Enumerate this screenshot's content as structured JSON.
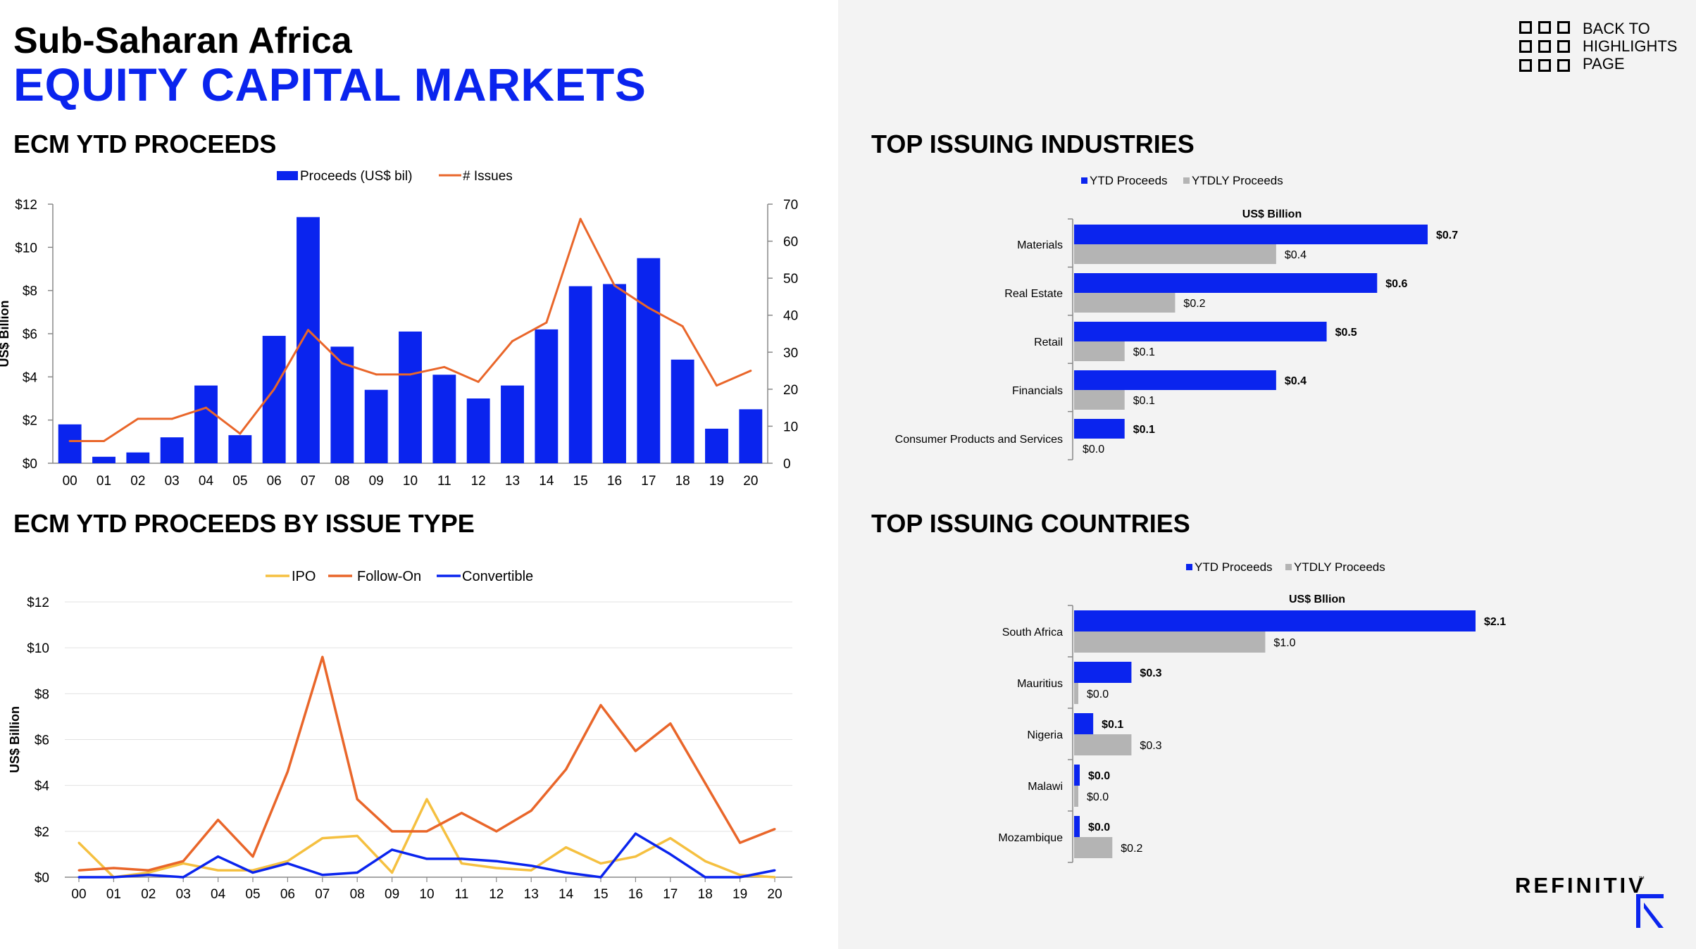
{
  "header": {
    "region": "Sub-Saharan Africa",
    "title": "EQUITY CAPITAL MARKETS"
  },
  "nav": {
    "back_lines": [
      "BACK TO",
      "HIGHLIGHTS",
      "PAGE"
    ],
    "icon": "grid-icon"
  },
  "brand": {
    "name": "REFINITIV",
    "tm": "™",
    "mark_icon": "refinitiv-r-mark",
    "mark_color": "#0a24ee"
  },
  "sections": {
    "proceeds": "ECM YTD PROCEEDS",
    "issue_type": "ECM YTD PROCEEDS BY ISSUE TYPE",
    "industries": "TOP ISSUING INDUSTRIES",
    "countries": "TOP ISSUING COUNTRIES"
  },
  "colors": {
    "blue": "#0a24ee",
    "orange": "#e9662a",
    "gold": "#f5c040",
    "gray": "#b4b4b4"
  },
  "chart_data": [
    {
      "id": "proceeds",
      "type": "bar+line",
      "title": "",
      "ylabel": "US$ Billion",
      "categories": [
        "00",
        "01",
        "02",
        "03",
        "04",
        "05",
        "06",
        "07",
        "08",
        "09",
        "10",
        "11",
        "12",
        "13",
        "14",
        "15",
        "16",
        "17",
        "18",
        "19",
        "20"
      ],
      "series": [
        {
          "name": "Proceeds (US$ bil)",
          "type": "bar",
          "axis": "left",
          "values": [
            1.8,
            0.3,
            0.5,
            1.2,
            3.6,
            1.3,
            5.9,
            11.4,
            5.4,
            3.4,
            6.1,
            4.1,
            3.0,
            3.6,
            6.2,
            8.2,
            8.3,
            9.5,
            4.8,
            1.6,
            2.5
          ]
        },
        {
          "name": "# Issues",
          "type": "line",
          "axis": "right",
          "values": [
            6,
            6,
            12,
            12,
            15,
            8,
            20,
            36,
            27,
            24,
            24,
            26,
            22,
            33,
            38,
            66,
            48,
            42,
            37,
            21,
            25
          ]
        }
      ],
      "ylim": [
        0,
        12
      ],
      "ylim_right": [
        0,
        70
      ],
      "yticks": [
        "$0",
        "$2",
        "$4",
        "$6",
        "$8",
        "$10",
        "$12"
      ],
      "yticks_right": [
        "0",
        "10",
        "20",
        "30",
        "40",
        "50",
        "60",
        "70"
      ],
      "legend": "top-center"
    },
    {
      "id": "issue_type",
      "type": "line",
      "title": "",
      "ylabel": "US$ Billion",
      "categories": [
        "00",
        "01",
        "02",
        "03",
        "04",
        "05",
        "06",
        "07",
        "08",
        "09",
        "10",
        "11",
        "12",
        "13",
        "14",
        "15",
        "16",
        "17",
        "18",
        "19",
        "20"
      ],
      "series": [
        {
          "name": "IPO",
          "values": [
            1.5,
            0.0,
            0.2,
            0.6,
            0.3,
            0.3,
            0.7,
            1.7,
            1.8,
            0.2,
            3.4,
            0.6,
            0.4,
            0.3,
            1.3,
            0.6,
            0.9,
            1.7,
            0.7,
            0.1,
            0.0
          ]
        },
        {
          "name": "Follow-On",
          "values": [
            0.3,
            0.4,
            0.3,
            0.7,
            2.5,
            0.9,
            4.6,
            9.6,
            3.4,
            2.0,
            2.0,
            2.8,
            2.0,
            2.9,
            4.7,
            7.5,
            5.5,
            6.7,
            4.1,
            1.5,
            2.1
          ]
        },
        {
          "name": "Convertible",
          "values": [
            0.0,
            0.0,
            0.1,
            0.0,
            0.9,
            0.2,
            0.6,
            0.1,
            0.2,
            1.2,
            0.8,
            0.8,
            0.7,
            0.5,
            0.2,
            0.0,
            1.9,
            1.0,
            0.0,
            0.0,
            0.3
          ]
        }
      ],
      "ylim": [
        0,
        12
      ],
      "yticks": [
        "$0",
        "$2",
        "$4",
        "$6",
        "$8",
        "$10",
        "$12"
      ],
      "legend": "top-center"
    },
    {
      "id": "industries",
      "type": "bar",
      "orientation": "horizontal",
      "title": "US$ Billion",
      "categories": [
        "Materials",
        "Real Estate",
        "Retail",
        "Financials",
        "Consumer Products and Services"
      ],
      "series": [
        {
          "name": "YTD Proceeds",
          "values": [
            0.7,
            0.6,
            0.5,
            0.4,
            0.1
          ],
          "labels": [
            "$0.7",
            "$0.6",
            "$0.5",
            "$0.4",
            "$0.1"
          ]
        },
        {
          "name": "YTDLY Proceeds",
          "values": [
            0.4,
            0.2,
            0.1,
            0.1,
            0.0
          ],
          "labels": [
            "$0.4",
            "$0.2",
            "$0.1",
            "$0.1",
            "$0.0"
          ]
        }
      ],
      "xlim": [
        0,
        0.77
      ],
      "legend": "top-center"
    },
    {
      "id": "countries",
      "type": "bar",
      "orientation": "horizontal",
      "title": "US$ Bllion",
      "categories": [
        "South Africa",
        "Mauritius",
        "Nigeria",
        "Malawi",
        "Mozambique"
      ],
      "series": [
        {
          "name": "YTD Proceeds",
          "values": [
            2.1,
            0.3,
            0.1,
            0.0,
            0.0
          ],
          "labels": [
            "$2.1",
            "$0.3",
            "$0.1",
            "$0.0",
            "$0.0"
          ]
        },
        {
          "name": "YTDLY Proceeds",
          "values": [
            1.0,
            0.0,
            0.3,
            0.0,
            0.2
          ],
          "labels": [
            "$1.0",
            "$0.0",
            "$0.3",
            "$0.0",
            "$0.2"
          ]
        }
      ],
      "xlim": [
        0,
        2.2
      ],
      "legend": "top-center"
    }
  ]
}
